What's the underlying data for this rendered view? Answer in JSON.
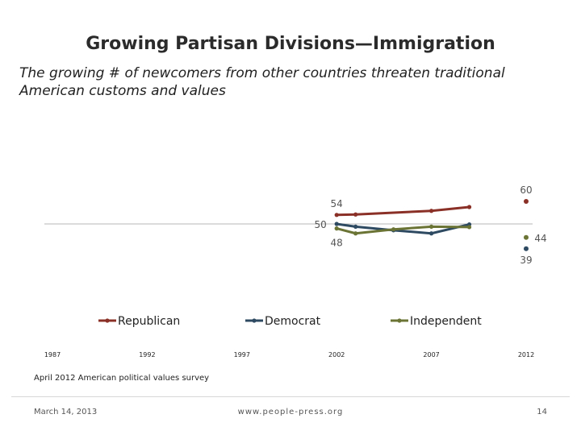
{
  "slide": {
    "title": "Growing Partisan Divisions—Immigration",
    "subtitle": "The growing # of newcomers from other countries threaten traditional American customs and values"
  },
  "footer": {
    "source": "April 2012 American political values survey",
    "date": "March 14, 2013",
    "url": "www.people-press.org",
    "page": "14"
  },
  "colors": {
    "republican": "#8b3026",
    "democrat": "#2e4a62",
    "independent": "#6b7435",
    "axis": "#b7b7b7"
  },
  "chart_data": {
    "type": "line",
    "title": "",
    "xlabel": "",
    "ylabel": "",
    "xticks": [
      1987,
      1992,
      1997,
      2002,
      2007,
      2012
    ],
    "xlim": [
      1987,
      2012
    ],
    "ylim": [
      30,
      70
    ],
    "baseline": 50,
    "grid": false,
    "legend_position": "bottom",
    "series": [
      {
        "name": "Republican",
        "key": "republican",
        "points": [
          [
            2002,
            54
          ],
          [
            2003,
            54.2
          ],
          [
            2007,
            55.8
          ],
          [
            2009,
            57.5
          ],
          [
            2012,
            60
          ]
        ],
        "labels": [
          {
            "x": 2002,
            "y": 54,
            "text": "54"
          },
          {
            "x": 2012,
            "y": 60,
            "text": "60"
          }
        ]
      },
      {
        "name": "Democrat",
        "key": "democrat",
        "points": [
          [
            2002,
            50
          ],
          [
            2003,
            48.8
          ],
          [
            2005,
            47.2
          ],
          [
            2007,
            45.8
          ],
          [
            2009,
            49.8
          ],
          [
            2012,
            39
          ]
        ],
        "labels": [
          {
            "x": 2002,
            "y": 50,
            "text": "50"
          },
          {
            "x": 2012,
            "y": 39,
            "text": "39"
          }
        ]
      },
      {
        "name": "Independent",
        "key": "independent",
        "points": [
          [
            2002,
            48
          ],
          [
            2003,
            45.8
          ],
          [
            2005,
            47.6
          ],
          [
            2007,
            48.8
          ],
          [
            2009,
            48.6
          ],
          [
            2012,
            44
          ]
        ],
        "labels": [
          {
            "x": 2002,
            "y": 48,
            "text": "48"
          },
          {
            "x": 2012,
            "y": 44,
            "text": "44"
          }
        ]
      }
    ]
  }
}
